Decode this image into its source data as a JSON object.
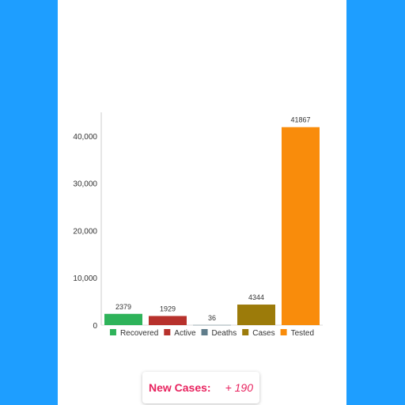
{
  "chart_data": {
    "type": "bar",
    "categories": [
      "Recovered",
      "Active",
      "Deaths",
      "Cases",
      "Tested"
    ],
    "values": [
      2379,
      1929,
      36,
      4344,
      41867
    ],
    "data_labels": [
      "2379",
      "1929",
      "36",
      "4344",
      "41867"
    ],
    "colors": [
      "#2eb35a",
      "#b7312c",
      "#607d8b",
      "#9c7b0a",
      "#f98c0b"
    ],
    "ylim": [
      0,
      45000
    ],
    "yticks": [
      0,
      10000,
      20000,
      30000,
      40000
    ],
    "ytick_labels": [
      "0",
      "10,000",
      "20,000",
      "30,000",
      "40,000"
    ],
    "legend": [
      "Recovered",
      "Active",
      "Deaths",
      "Cases",
      "Tested"
    ],
    "legend_position": "bottom",
    "grid": false
  },
  "new_cases": {
    "label": "New Cases:",
    "value": "+ 190"
  }
}
